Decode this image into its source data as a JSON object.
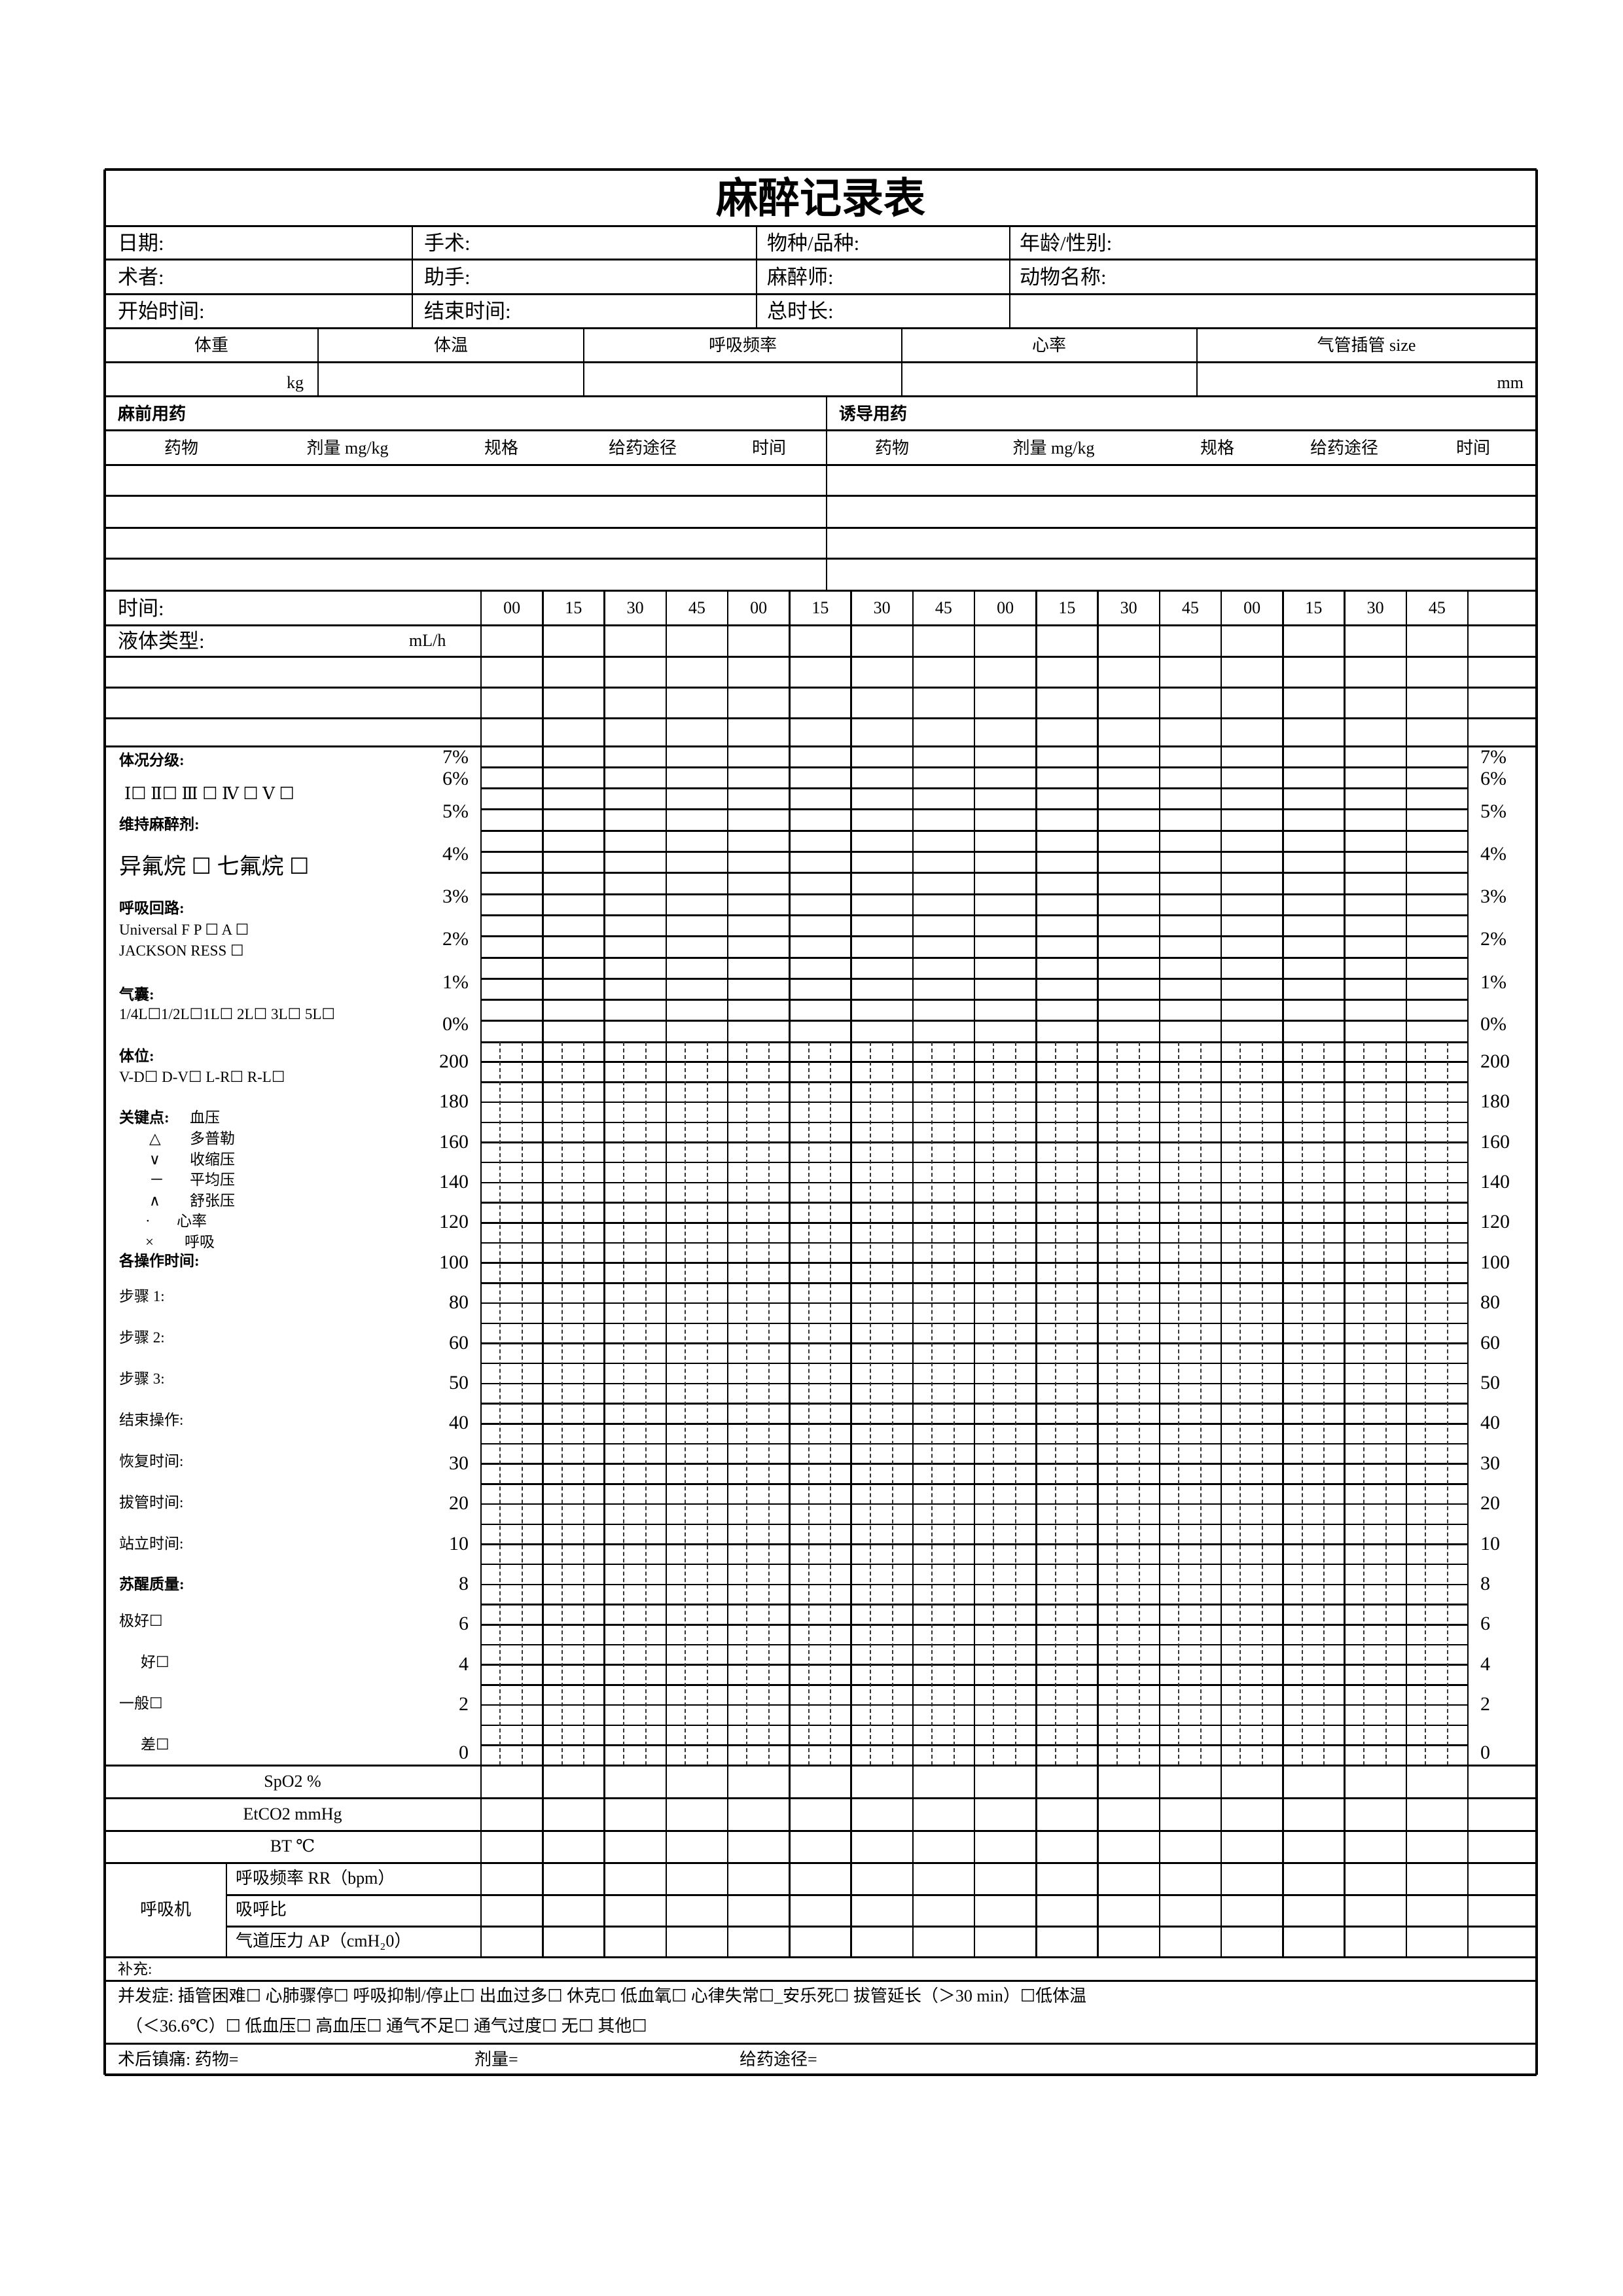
{
  "title": "麻醉记录表",
  "info": [
    [
      "日期:",
      "手术:",
      "物种/品种:",
      "年龄/性别:"
    ],
    [
      "术者:",
      "助手:",
      "麻醉师:",
      "动物名称:"
    ],
    [
      "开始时间:",
      "结束时间:",
      "总时长:",
      ""
    ]
  ],
  "vitals": {
    "headers": [
      "体重",
      "体温",
      "呼吸频率",
      "心率",
      "气管插管  size"
    ],
    "weight_unit": "kg",
    "tube_unit": "mm"
  },
  "premed": {
    "title": "麻前用药",
    "headers": [
      "药物",
      "剂量 mg/kg",
      "规格",
      "给药途径",
      "时间"
    ]
  },
  "induction": {
    "title": "诱导用药",
    "headers": [
      "药物",
      "剂量 mg/kg",
      "规格",
      "给药途径",
      "时间"
    ]
  },
  "time_row": {
    "label": "时间:",
    "ticks": [
      "00",
      "15",
      "30",
      "45",
      "00",
      "15",
      "30",
      "45",
      "00",
      "15",
      "30",
      "45",
      "00",
      "15",
      "30",
      "45"
    ]
  },
  "fluid": {
    "label": "液体类型:",
    "unit": "mL/h"
  },
  "left_panel": {
    "asa_title": "体况分级:",
    "asa_options": "Ⅰ☐  Ⅱ☐  Ⅲ ☐  Ⅳ ☐  Ⅴ ☐",
    "maint_title": "维持麻醉剂:",
    "maint_options": "异氟烷 ☐     七氟烷 ☐",
    "circuit_title": "呼吸回路:",
    "circuit_1": "Universal F       P ☐    A ☐",
    "circuit_2": "JACKSON RESS           ☐",
    "bag_title": "气囊:",
    "bag_options": "1/4L☐1/2L☐1L☐  2L☐  3L☐  5L☐",
    "position_title": "体位:",
    "position_options": "V-D☐     D-V☐     L-R☐  R-L☐",
    "key_title": "关键点:",
    "key_bp": "血压",
    "legend": [
      [
        "△",
        "多普勒"
      ],
      [
        "∨",
        "收缩压"
      ],
      [
        "－",
        "平均压"
      ],
      [
        "∧",
        "舒张压"
      ],
      [
        "·",
        "心率"
      ],
      [
        "×",
        "呼吸"
      ]
    ],
    "ops_title": "各操作时间:",
    "ops": [
      "步骤 1:",
      "步骤 2:",
      "步骤 3:",
      "结束操作:",
      "恢复时间:",
      "拔管时间:",
      "站立时间:"
    ],
    "recovery_title": "苏醒质量:",
    "recovery": [
      "极好☐",
      "好☐",
      "一般☐",
      "差☐"
    ]
  },
  "chart_data": {
    "type": "table",
    "gas_axis_labels": [
      "7%",
      "6%",
      "5%",
      "4%",
      "3%",
      "2%",
      "1%",
      "0%"
    ],
    "vital_axis_labels": [
      "200",
      "180",
      "160",
      "140",
      "120",
      "100",
      "80",
      "60",
      "50",
      "40",
      "30",
      "20",
      "10",
      "8",
      "6",
      "4",
      "2",
      "0"
    ]
  },
  "monitor_rows": [
    "SpO2 %",
    "EtCO2 mmHg",
    "BT ℃"
  ],
  "ventilator": {
    "label": "呼吸机",
    "rows": [
      "呼吸频率 RR（bpm）",
      "吸呼比",
      "气道压力 AP（cmH₂0）"
    ]
  },
  "supplement": "补充:",
  "complications": {
    "line1": "并发症:  插管困难☐   心肺骤停☐   呼吸抑制/停止☐   出血过多☐   休克☐   低血氧☐   心律失常☐_安乐死☐   拔管延长（＞30 min）☐低体温",
    "line2": "（＜36.6℃）☐    低血压☐    高血压☐    通气不足☐    通气过度☐    无☐    其他☐"
  },
  "postop": {
    "label": "术后镇痛:  药物=",
    "dose": "剂量=",
    "route": "给药途径="
  }
}
